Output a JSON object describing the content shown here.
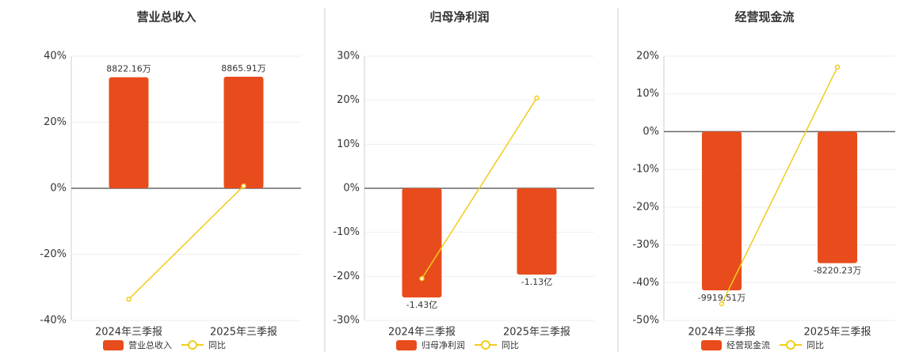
{
  "chart_data": [
    {
      "type": "bar",
      "title": "营业总收入",
      "categories": [
        "2024年三季报",
        "2025年三季报"
      ],
      "series": [
        {
          "name": "营业总收入",
          "color": "#e84c1c",
          "values": [
            8822.16,
            8865.91
          ],
          "value_labels": [
            "8822.16万",
            "8865.91万"
          ],
          "axis": "y2"
        },
        {
          "name": "同比",
          "color": "#f0cc1c",
          "type": "line",
          "values": [
            -33.6,
            0.7
          ]
        }
      ],
      "ylim": [
        -40,
        40
      ],
      "yticks": [
        {
          "value": -40,
          "label": "-40%"
        },
        {
          "value": -20,
          "label": "-20%"
        },
        {
          "value": 0,
          "label": "0%"
        },
        {
          "value": 20,
          "label": "20%"
        },
        {
          "value": 40,
          "label": "40%"
        }
      ],
      "y2lim": [
        -10500,
        10500
      ],
      "grid": true
    },
    {
      "type": "bar",
      "title": "归母净利润",
      "categories": [
        "2024年三季报",
        "2025年三季报"
      ],
      "series": [
        {
          "name": "归母净利润",
          "color": "#e84c1c",
          "values": [
            -1.43,
            -1.13
          ],
          "value_labels": [
            "-1.43亿",
            "-1.13亿"
          ],
          "axis": "y2"
        },
        {
          "name": "同比",
          "color": "#f0cc1c",
          "type": "line",
          "values": [
            -20.5,
            20.5
          ]
        }
      ],
      "ylim": [
        -30,
        30
      ],
      "yticks": [
        {
          "value": -30,
          "label": "-30%"
        },
        {
          "value": -20,
          "label": "-20%"
        },
        {
          "value": -10,
          "label": "-10%"
        },
        {
          "value": 0,
          "label": "0%"
        },
        {
          "value": 10,
          "label": "10%"
        },
        {
          "value": 20,
          "label": "20%"
        },
        {
          "value": 30,
          "label": "30%"
        }
      ],
      "y2lim": [
        -1.73,
        1.73
      ],
      "grid": true
    },
    {
      "type": "bar",
      "title": "经营现金流",
      "categories": [
        "2024年三季报",
        "2025年三季报"
      ],
      "series": [
        {
          "name": "经营现金流",
          "color": "#e84c1c",
          "values": [
            -9919.51,
            -8220.23
          ],
          "value_labels": [
            "-9919.51万",
            "-8220.23万"
          ],
          "axis": "y2"
        },
        {
          "name": "同比",
          "color": "#f0cc1c",
          "type": "line",
          "values": [
            -45.6,
            17.1
          ]
        }
      ],
      "ylim": [
        -50,
        20
      ],
      "yticks": [
        {
          "value": -50,
          "label": "-50%"
        },
        {
          "value": -40,
          "label": "-40%"
        },
        {
          "value": -30,
          "label": "-30%"
        },
        {
          "value": -20,
          "label": "-20%"
        },
        {
          "value": -10,
          "label": "-10%"
        },
        {
          "value": 0,
          "label": "0%"
        },
        {
          "value": 10,
          "label": "10%"
        },
        {
          "value": 20,
          "label": "20%"
        }
      ],
      "y2lim": [
        -11800,
        4720
      ],
      "grid": true
    }
  ]
}
